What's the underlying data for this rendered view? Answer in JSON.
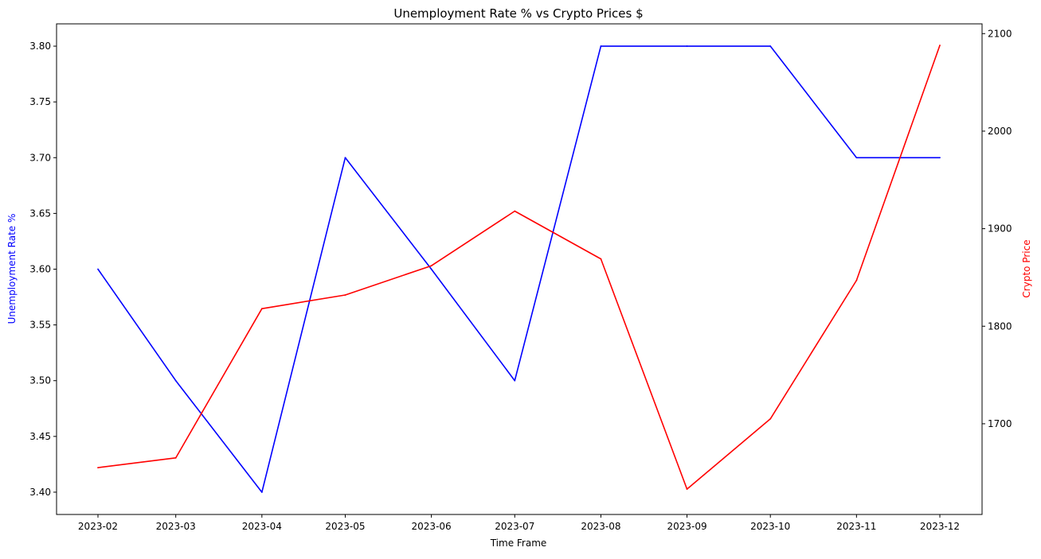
{
  "chart_data": {
    "type": "line",
    "title": "Unemployment Rate % vs Crypto Prices $",
    "xlabel": "Time Frame",
    "x_tick_labels": [
      "2023-02",
      "2023-03",
      "2023-04",
      "2023-05",
      "2023-06",
      "2023-07",
      "2023-08",
      "2023-09",
      "2023-10",
      "2023-11",
      "2023-12"
    ],
    "x": [
      "2023-02-01",
      "2023-03-01",
      "2023-04-01",
      "2023-05-01",
      "2023-06-01",
      "2023-07-01",
      "2023-08-01",
      "2023-09-01",
      "2023-10-01",
      "2023-11-01",
      "2023-12-01"
    ],
    "left_axis": {
      "label": "Unemployment Rate %",
      "color": "#0000ff",
      "ylim": [
        3.38,
        3.82
      ],
      "ticks": [
        3.4,
        3.45,
        3.5,
        3.55,
        3.6,
        3.65,
        3.7,
        3.75,
        3.8
      ],
      "tick_labels": [
        "3.40",
        "3.45",
        "3.50",
        "3.55",
        "3.60",
        "3.65",
        "3.70",
        "3.75",
        "3.80"
      ]
    },
    "right_axis": {
      "label": "Crypto Price",
      "color": "#ff0000",
      "ylim": [
        1607,
        2110
      ],
      "ticks": [
        1700,
        1800,
        1900,
        2000,
        2100
      ],
      "tick_labels": [
        "1700",
        "1800",
        "1900",
        "2000",
        "2100"
      ]
    },
    "series": [
      {
        "axis": "left",
        "color": "#0000ff",
        "values": [
          3.6,
          3.5,
          3.4,
          3.7,
          3.6,
          3.5,
          3.8,
          3.8,
          3.8,
          3.7,
          3.7
        ]
      },
      {
        "axis": "right",
        "color": "#ff0000",
        "values": [
          1655,
          1665,
          1818,
          1832,
          1862,
          1918,
          1869,
          1633,
          1705,
          1847,
          2088
        ]
      }
    ],
    "grid": false,
    "legend": "none"
  }
}
